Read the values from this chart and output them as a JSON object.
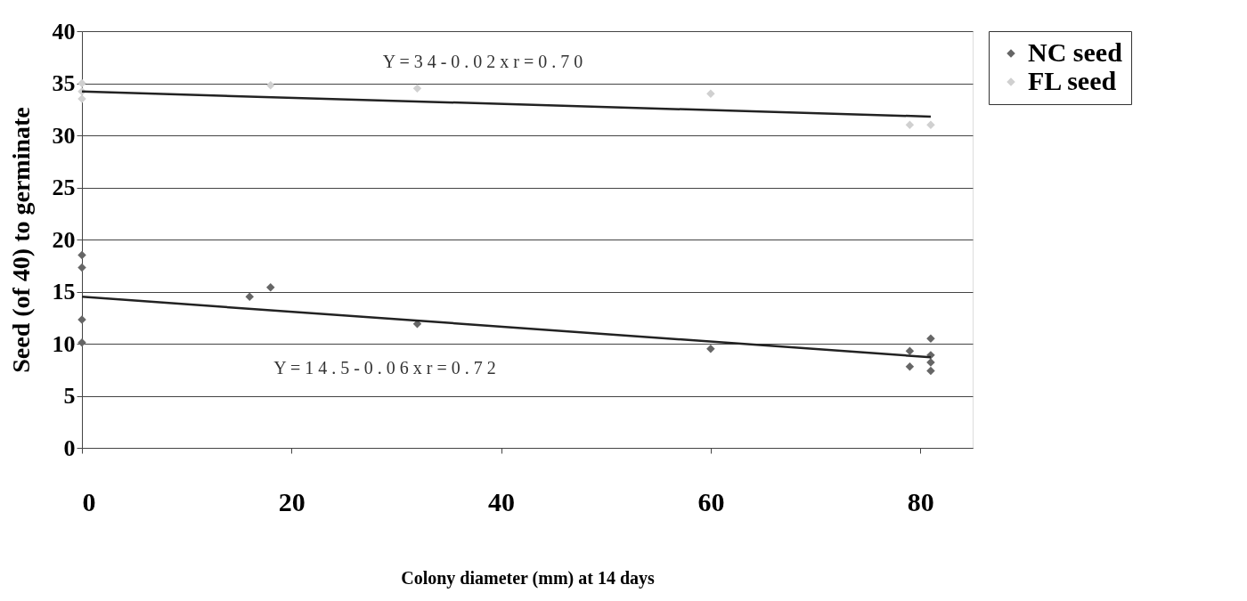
{
  "chart_data": {
    "type": "scatter",
    "xlabel": "Colony diameter (mm) at 14 days",
    "ylabel": "Seed (of 40) to germinate",
    "xlim": [
      0,
      85
    ],
    "xticks": [
      0,
      20,
      40,
      60,
      80
    ],
    "ylim": [
      0,
      40
    ],
    "yticks": [
      0,
      5,
      10,
      15,
      20,
      25,
      30,
      35,
      40
    ],
    "grid": "y",
    "legend": "right",
    "marker": "diamond",
    "series": [
      {
        "name": "NC seed",
        "color": "#666666",
        "x": [
          0,
          0,
          0,
          0,
          16,
          18,
          32,
          60,
          79,
          79,
          81,
          81,
          81,
          81
        ],
        "values": [
          18.5,
          17.3,
          12.3,
          10.1,
          14.5,
          15.4,
          11.9,
          9.5,
          9.3,
          7.8,
          10.5,
          8.9,
          8.2,
          7.4
        ]
      },
      {
        "name": "FL seed",
        "color": "#d0d0d0",
        "x": [
          0,
          0,
          0,
          18,
          32,
          60,
          79,
          81
        ],
        "values": [
          35,
          34.2,
          33.5,
          34.8,
          34.5,
          34,
          31,
          31
        ]
      },
      {
        "type": "line",
        "color": "#222222",
        "marker": "none",
        "x": [
          0,
          81
        ],
        "values": [
          14.5,
          8.7
        ]
      },
      {
        "type": "line",
        "color": "#222222",
        "marker": "none",
        "x": [
          0,
          81
        ],
        "values": [
          34.2,
          31.8
        ]
      }
    ],
    "annotations": [
      "Y  =  3 4  -  0 . 0 2   x   r = 0 . 7 0",
      "Y  =  1 4 . 5  - 0 . 0 6   x     r = 0 . 7 2"
    ]
  }
}
